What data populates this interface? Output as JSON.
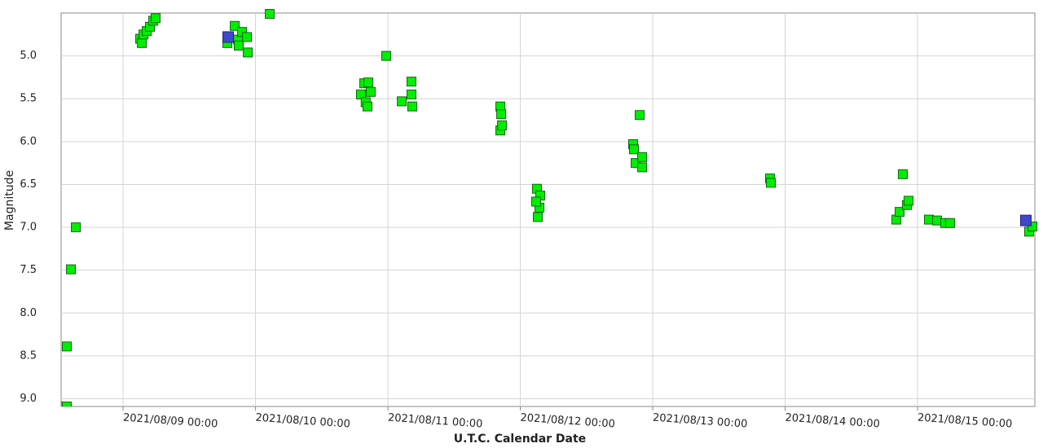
{
  "chart_data": {
    "type": "scatter",
    "x_label": "U.T.C. Calendar Date",
    "y_label": "Magnitude",
    "xlim": [
      "2021/08/08 12:46",
      "2021/08/15 21:16"
    ],
    "xticks": [
      "2021/08/09 00:00",
      "2021/08/10 00:00",
      "2021/08/11 00:00",
      "2021/08/12 00:00",
      "2021/08/13 00:00",
      "2021/08/14 00:00",
      "2021/08/15 00:00"
    ],
    "ylim": [
      4.5,
      9.09
    ],
    "invert_y": true,
    "yticks": [
      {
        "value": 5,
        "label": "5.0"
      },
      {
        "value": 5.5,
        "label": "5.5"
      },
      {
        "value": 6,
        "label": "6.0"
      },
      {
        "value": 6.5,
        "label": "6.5"
      },
      {
        "value": 7,
        "label": "7.0"
      },
      {
        "value": 7.5,
        "label": "7.5"
      },
      {
        "value": 8,
        "label": "8.0"
      },
      {
        "value": 8.5,
        "label": "8.5"
      },
      {
        "value": 9,
        "label": "9.0"
      }
    ],
    "grid": true,
    "series": [
      {
        "color": "#00ee00",
        "x": [
          "2021/08/08 12:46",
          "2021/08/08 13:48",
          "2021/08/08 13:48",
          "2021/08/08 14:33",
          "2021/08/08 15:26",
          "2021/08/09 03:06",
          "2021/08/09 03:24",
          "2021/08/09 03:42",
          "2021/08/09 04:17",
          "2021/08/09 04:52",
          "2021/08/09 05:28",
          "2021/08/09 05:54",
          "2021/08/09 18:54",
          "2021/08/09 20:14",
          "2021/08/09 20:50",
          "2021/08/09 20:58",
          "2021/08/09 21:34",
          "2021/08/09 22:27",
          "2021/08/09 22:36",
          "2021/08/10 02:35",
          "2021/08/10 19:07",
          "2021/08/10 19:43",
          "2021/08/10 19:58",
          "2021/08/10 20:18",
          "2021/08/10 20:27",
          "2021/08/10 20:53",
          "2021/08/10 23:42",
          "2021/08/11 02:31",
          "2021/08/11 04:16",
          "2021/08/11 04:16",
          "2021/08/11 04:25",
          "2021/08/11 20:23",
          "2021/08/11 20:32",
          "2021/08/11 20:23",
          "2021/08/11 20:41",
          "2021/08/12 03:01",
          "2021/08/12 03:10",
          "2021/08/12 03:37",
          "2021/08/12 03:28",
          "2021/08/12 02:52",
          "2021/08/12 20:27",
          "2021/08/12 20:36",
          "2021/08/12 20:54",
          "2021/08/12 21:38",
          "2021/08/12 22:05",
          "2021/08/12 22:05",
          "2021/08/13 21:16",
          "2021/08/13 21:25",
          "2021/08/14 20:10",
          "2021/08/14 20:45",
          "2021/08/14 21:20",
          "2021/08/14 22:05",
          "2021/08/14 22:22",
          "2021/08/15 02:04",
          "2021/08/15 03:32",
          "2021/08/15 05:01",
          "2021/08/15 05:54",
          "2021/08/15 20:14",
          "2021/08/15 20:50"
        ],
        "values": [
          9.09,
          9.09,
          8.39,
          7.49,
          7.0,
          4.8,
          4.85,
          4.75,
          4.71,
          4.66,
          4.59,
          4.56,
          4.85,
          4.65,
          4.81,
          4.88,
          4.72,
          4.78,
          4.96,
          4.51,
          5.45,
          5.32,
          5.54,
          5.59,
          5.31,
          5.42,
          5.0,
          5.53,
          5.3,
          5.45,
          5.59,
          5.59,
          5.68,
          5.87,
          5.81,
          6.55,
          6.88,
          6.63,
          6.77,
          6.7,
          6.03,
          6.09,
          6.25,
          5.69,
          6.18,
          6.3,
          6.43,
          6.48,
          6.91,
          6.82,
          6.38,
          6.74,
          6.69,
          6.91,
          6.92,
          6.95,
          6.95,
          7.05,
          6.99
        ]
      },
      {
        "color": "#3f48cc",
        "x": [
          "2021/08/09 19:03",
          "2021/08/15 19:38"
        ],
        "values": [
          4.78,
          6.92
        ]
      }
    ]
  }
}
